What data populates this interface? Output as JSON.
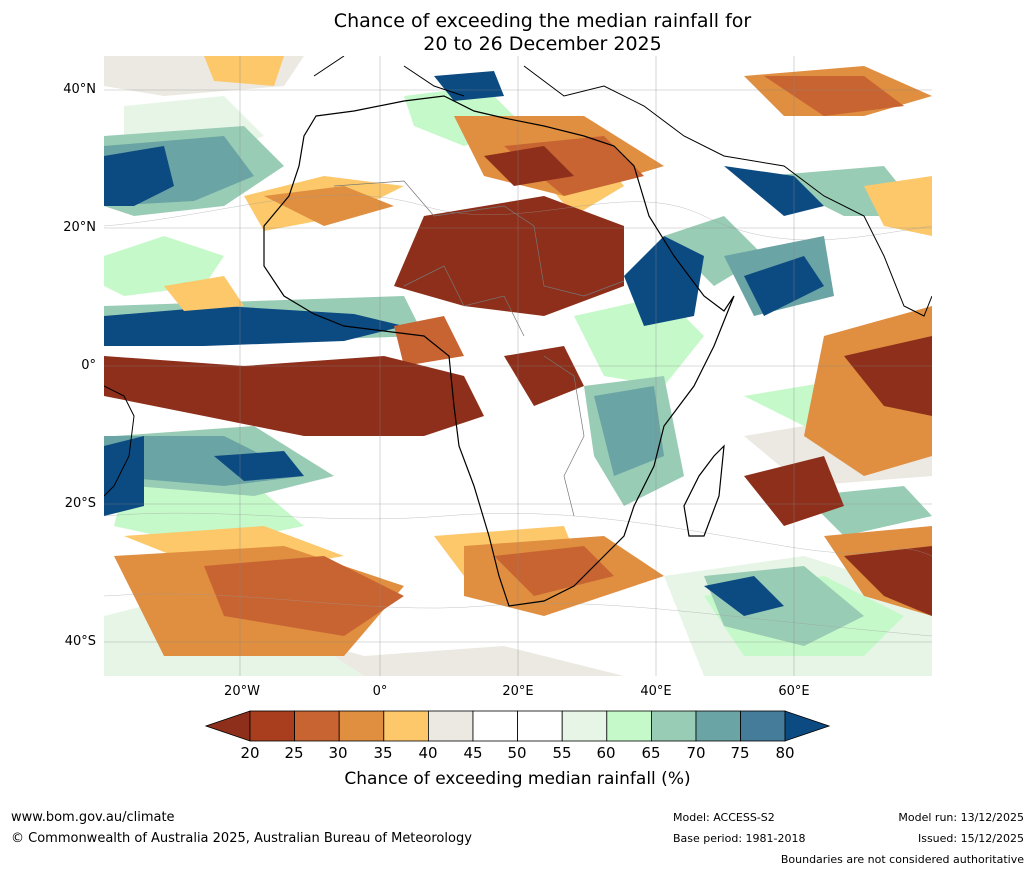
{
  "title": {
    "line1": "Chance of exceeding the median rainfall for",
    "line2": "20 to 26 December 2025"
  },
  "latitudes": [
    "40°N",
    "20°N",
    "0°",
    "20°S",
    "40°S"
  ],
  "longitudes": [
    "20°W",
    "0°",
    "20°E",
    "40°E",
    "60°E"
  ],
  "colorbar": {
    "ticks": [
      "20",
      "25",
      "30",
      "35",
      "40",
      "45",
      "50",
      "55",
      "60",
      "65",
      "70",
      "75",
      "80"
    ],
    "colors": [
      "#8d2f1a",
      "#a93e1f",
      "#c86432",
      "#e08e40",
      "#fcc86a",
      "#ece9e2",
      "#ffffff",
      "#ffffff",
      "#e7f5e6",
      "#c5f9c9",
      "#99ccb5",
      "#6aa4a4",
      "#447c9a",
      "#0c4a82"
    ],
    "label": "Chance of exceeding median rainfall (%)"
  },
  "footer": {
    "website": "www.bom.gov.au/climate",
    "copyright": "© Commonwealth of Australia 2025, Australian Bureau of Meteorology",
    "model": "Model: ACCESS-S2",
    "base_period": "Base period: 1981-2018",
    "model_run": "Model run: 13/12/2025",
    "issued": "Issued: 15/12/2025",
    "disclaimer": "Boundaries are not considered authoritative"
  }
}
